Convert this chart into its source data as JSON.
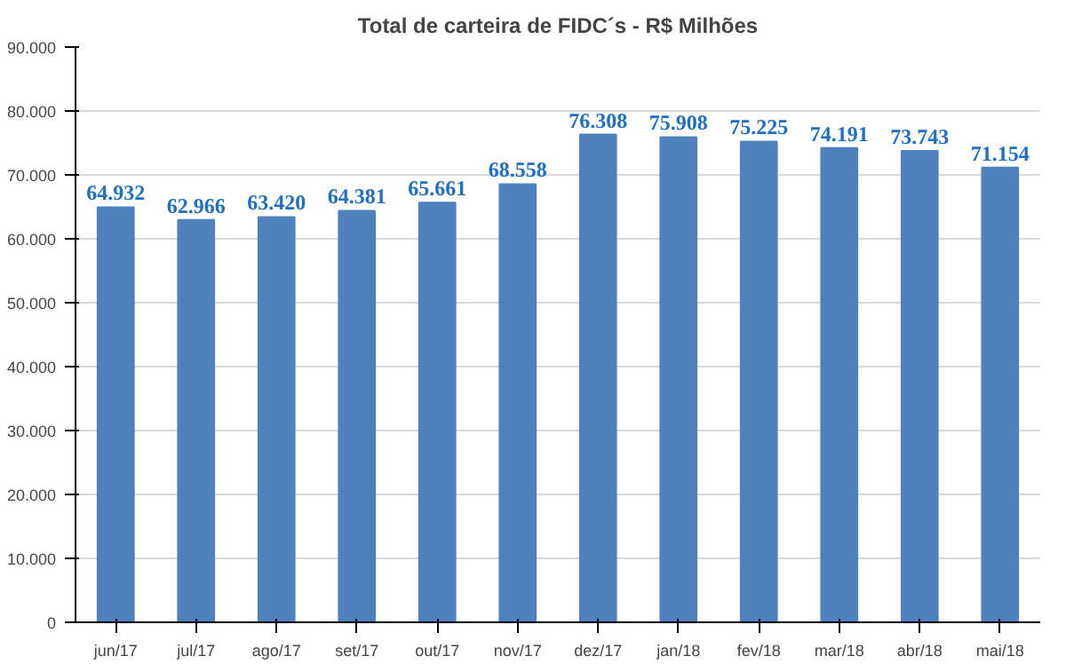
{
  "chart_data": {
    "type": "bar",
    "title": "Total de carteira de FIDC´s - R$ Milhões",
    "categories": [
      "jun/17",
      "jul/17",
      "ago/17",
      "set/17",
      "out/17",
      "nov/17",
      "dez/17",
      "jan/18",
      "fev/18",
      "mar/18",
      "abr/18",
      "mai/18"
    ],
    "values": [
      64932,
      62966,
      63420,
      64381,
      65661,
      68558,
      76308,
      75908,
      75225,
      74191,
      73743,
      71154
    ],
    "value_labels": [
      "64.932",
      "62.966",
      "63.420",
      "64.381",
      "65.661",
      "68.558",
      "76.308",
      "75.908",
      "75.225",
      "74.191",
      "73.743",
      "71.154"
    ],
    "color": "#4f81bd",
    "ylim": [
      0,
      90000
    ],
    "yticks": [
      {
        "value": 0,
        "label": "0"
      },
      {
        "value": 10000,
        "label": "10.000"
      },
      {
        "value": 20000,
        "label": "20.000"
      },
      {
        "value": 30000,
        "label": "30.000"
      },
      {
        "value": 40000,
        "label": "40.000"
      },
      {
        "value": 50000,
        "label": "50.000"
      },
      {
        "value": 60000,
        "label": "60.000"
      },
      {
        "value": 70000,
        "label": "70.000"
      },
      {
        "value": 80000,
        "label": "80.000"
      },
      {
        "value": 90000,
        "label": "90.000"
      }
    ],
    "grid": "y"
  }
}
